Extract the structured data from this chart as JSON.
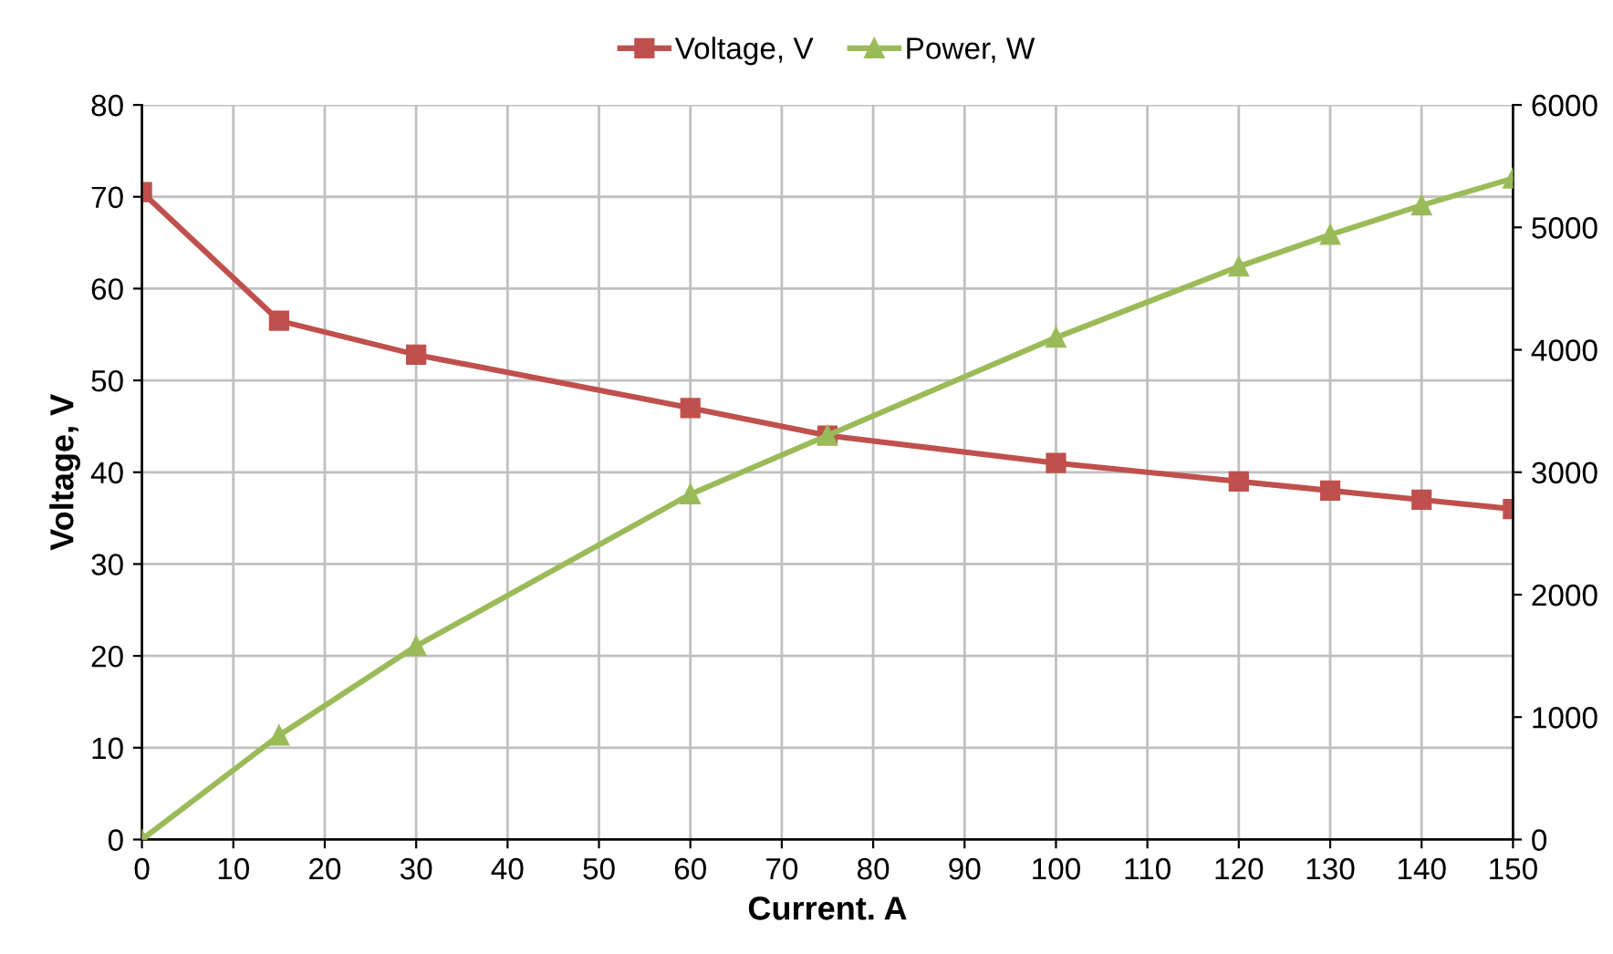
{
  "chart_data": {
    "type": "line",
    "xlabel": "Current. A",
    "ylabel": "Voltage, V",
    "x": [
      0,
      15,
      30,
      60,
      75,
      100,
      120,
      130,
      140,
      150
    ],
    "series": [
      {
        "name": "Voltage, V",
        "color": "#c0504d",
        "marker": "square",
        "values": [
          70.5,
          56.5,
          52.8,
          47,
          44,
          41,
          39,
          38,
          37,
          36
        ]
      },
      {
        "name": "Power, W",
        "color": "#9bbb59",
        "marker": "triangle",
        "axis": "y2",
        "values": [
          0,
          850,
          1580,
          2820,
          3300,
          4100,
          4680,
          4940,
          5180,
          5400
        ]
      }
    ],
    "xlim": [
      0,
      150
    ],
    "xticks": [
      0,
      10,
      20,
      30,
      40,
      50,
      60,
      70,
      80,
      90,
      100,
      110,
      120,
      130,
      140,
      150
    ],
    "ylim": [
      0,
      80
    ],
    "yticks": [
      0,
      10,
      20,
      30,
      40,
      50,
      60,
      70,
      80
    ],
    "y2lim": [
      0,
      6000
    ],
    "y2ticks": [
      0,
      1000,
      2000,
      3000,
      4000,
      5000,
      6000
    ],
    "grid": true,
    "legend": "top",
    "line_style": "solid"
  }
}
